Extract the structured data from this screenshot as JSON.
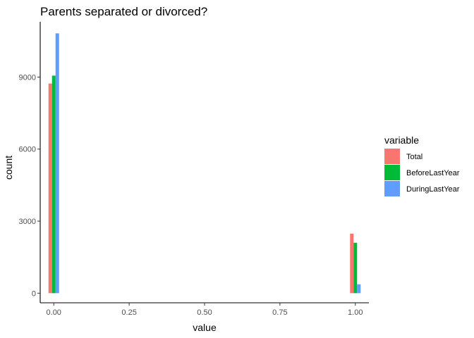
{
  "chart_data": {
    "type": "bar",
    "title": "Parents separated or divorced?",
    "xlabel": "value",
    "ylabel": "count",
    "x": [
      0,
      1
    ],
    "xlim": [
      -0.045,
      1.045
    ],
    "ylim": [
      -400,
      11300
    ],
    "xticks": [
      "0.00",
      "0.25",
      "0.50",
      "0.75",
      "1.00"
    ],
    "yticks": [
      "0",
      "3000",
      "6000",
      "9000"
    ],
    "grid": false,
    "legend": {
      "title": "variable",
      "position": "right"
    },
    "series": [
      {
        "name": "Total",
        "color": "#F8766D",
        "values": [
          8730,
          2480
        ]
      },
      {
        "name": "BeforeLastYear",
        "color": "#00BA38",
        "values": [
          9060,
          2100
        ]
      },
      {
        "name": "DuringLastYear",
        "color": "#619CFF",
        "values": [
          10820,
          370
        ]
      }
    ]
  }
}
